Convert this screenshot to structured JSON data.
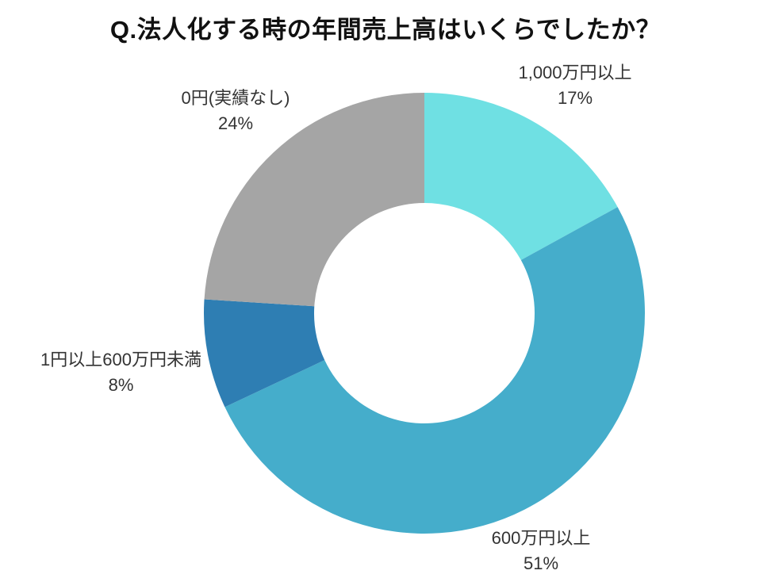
{
  "title": "Q.法人化する時の年間売上高はいくらでしたか？",
  "chart_data": {
    "type": "pie",
    "subtype": "donut",
    "title": "Q.法人化する時の年間売上高はいくらでしたか？",
    "start_angle_deg": 0,
    "direction": "clockwise",
    "inner_radius_ratio": 0.5,
    "legend": "none",
    "segments": [
      {
        "label": "1,000万円以上",
        "value": 17,
        "percent_label": "17%",
        "color": "#6FE0E3"
      },
      {
        "label": "600万円以上",
        "value": 51,
        "percent_label": "51%",
        "color": "#45ADCB"
      },
      {
        "label": "1円以上600万円未満",
        "value": 8,
        "percent_label": "8%",
        "color": "#2E7EB3"
      },
      {
        "label": "0円(実績なし)",
        "value": 24,
        "percent_label": "24%",
        "color": "#A5A5A5"
      }
    ]
  },
  "colors": {
    "background": "#ffffff",
    "title_text": "#111111",
    "label_text": "#333333"
  }
}
